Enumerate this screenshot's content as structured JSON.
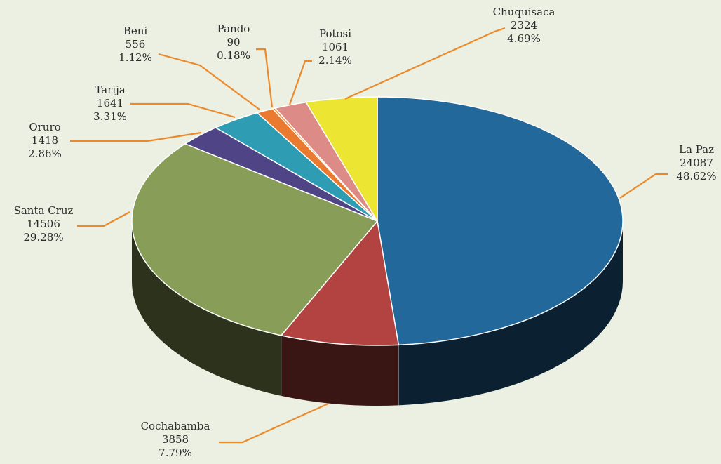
{
  "chart_data": {
    "type": "pie",
    "style": "3d",
    "categories": [
      "La Paz",
      "Cochabamba",
      "Santa Cruz",
      "Oruro",
      "Tarija",
      "Beni",
      "Pando",
      "Potosi",
      "Chuquisaca"
    ],
    "values": [
      24087,
      3858,
      14506,
      1418,
      1641,
      556,
      90,
      1061,
      2324
    ],
    "percent_labels": [
      "48.62%",
      "7.79%",
      "29.28%",
      "2.86%",
      "3.31%",
      "1.12%",
      "0.18%",
      "2.14%",
      "4.69%"
    ],
    "colors": [
      "#22689a",
      "#b24340",
      "#889d57",
      "#4f4586",
      "#2e9cb2",
      "#ea7a30",
      "#f28c2f",
      "#dd8b86",
      "#ece531"
    ],
    "leader_color": "#ec8a2b",
    "title": ""
  }
}
